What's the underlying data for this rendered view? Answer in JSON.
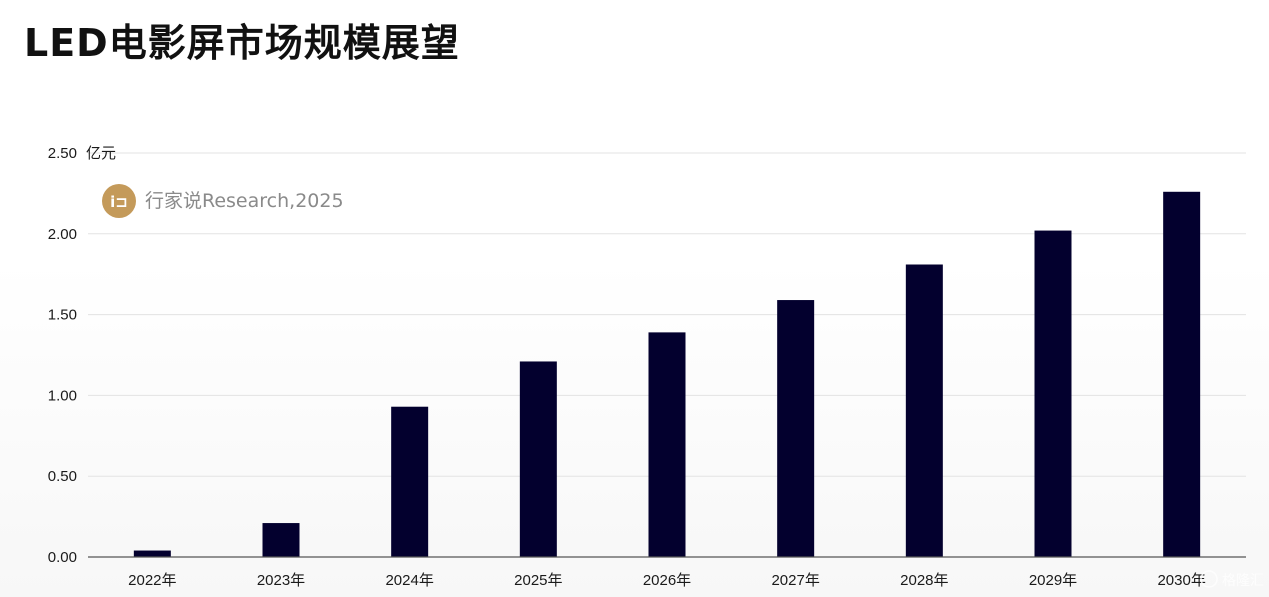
{
  "title": "LED电影屏市场规模展望",
  "source": "行家说Research,2025",
  "watermark": "格隆汇",
  "colors": {
    "bar": "#03002e",
    "grid": "#e3e3e3",
    "axis": "#555555",
    "logo": "#c49a5a"
  },
  "chart_data": {
    "type": "bar",
    "title": "LED电影屏市场规模展望",
    "ylabel": "亿元",
    "xlabel": "",
    "categories": [
      "2022年",
      "2023年",
      "2024年",
      "2025年",
      "2026年",
      "2027年",
      "2028年",
      "2029年",
      "2030年"
    ],
    "values": [
      0.04,
      0.21,
      0.93,
      1.21,
      1.39,
      1.59,
      1.81,
      2.02,
      2.26
    ],
    "ylim": [
      0,
      2.5
    ],
    "yticks": [
      "0.00",
      "0.50",
      "1.00",
      "1.50",
      "2.00",
      "2.50"
    ],
    "grid": true
  }
}
